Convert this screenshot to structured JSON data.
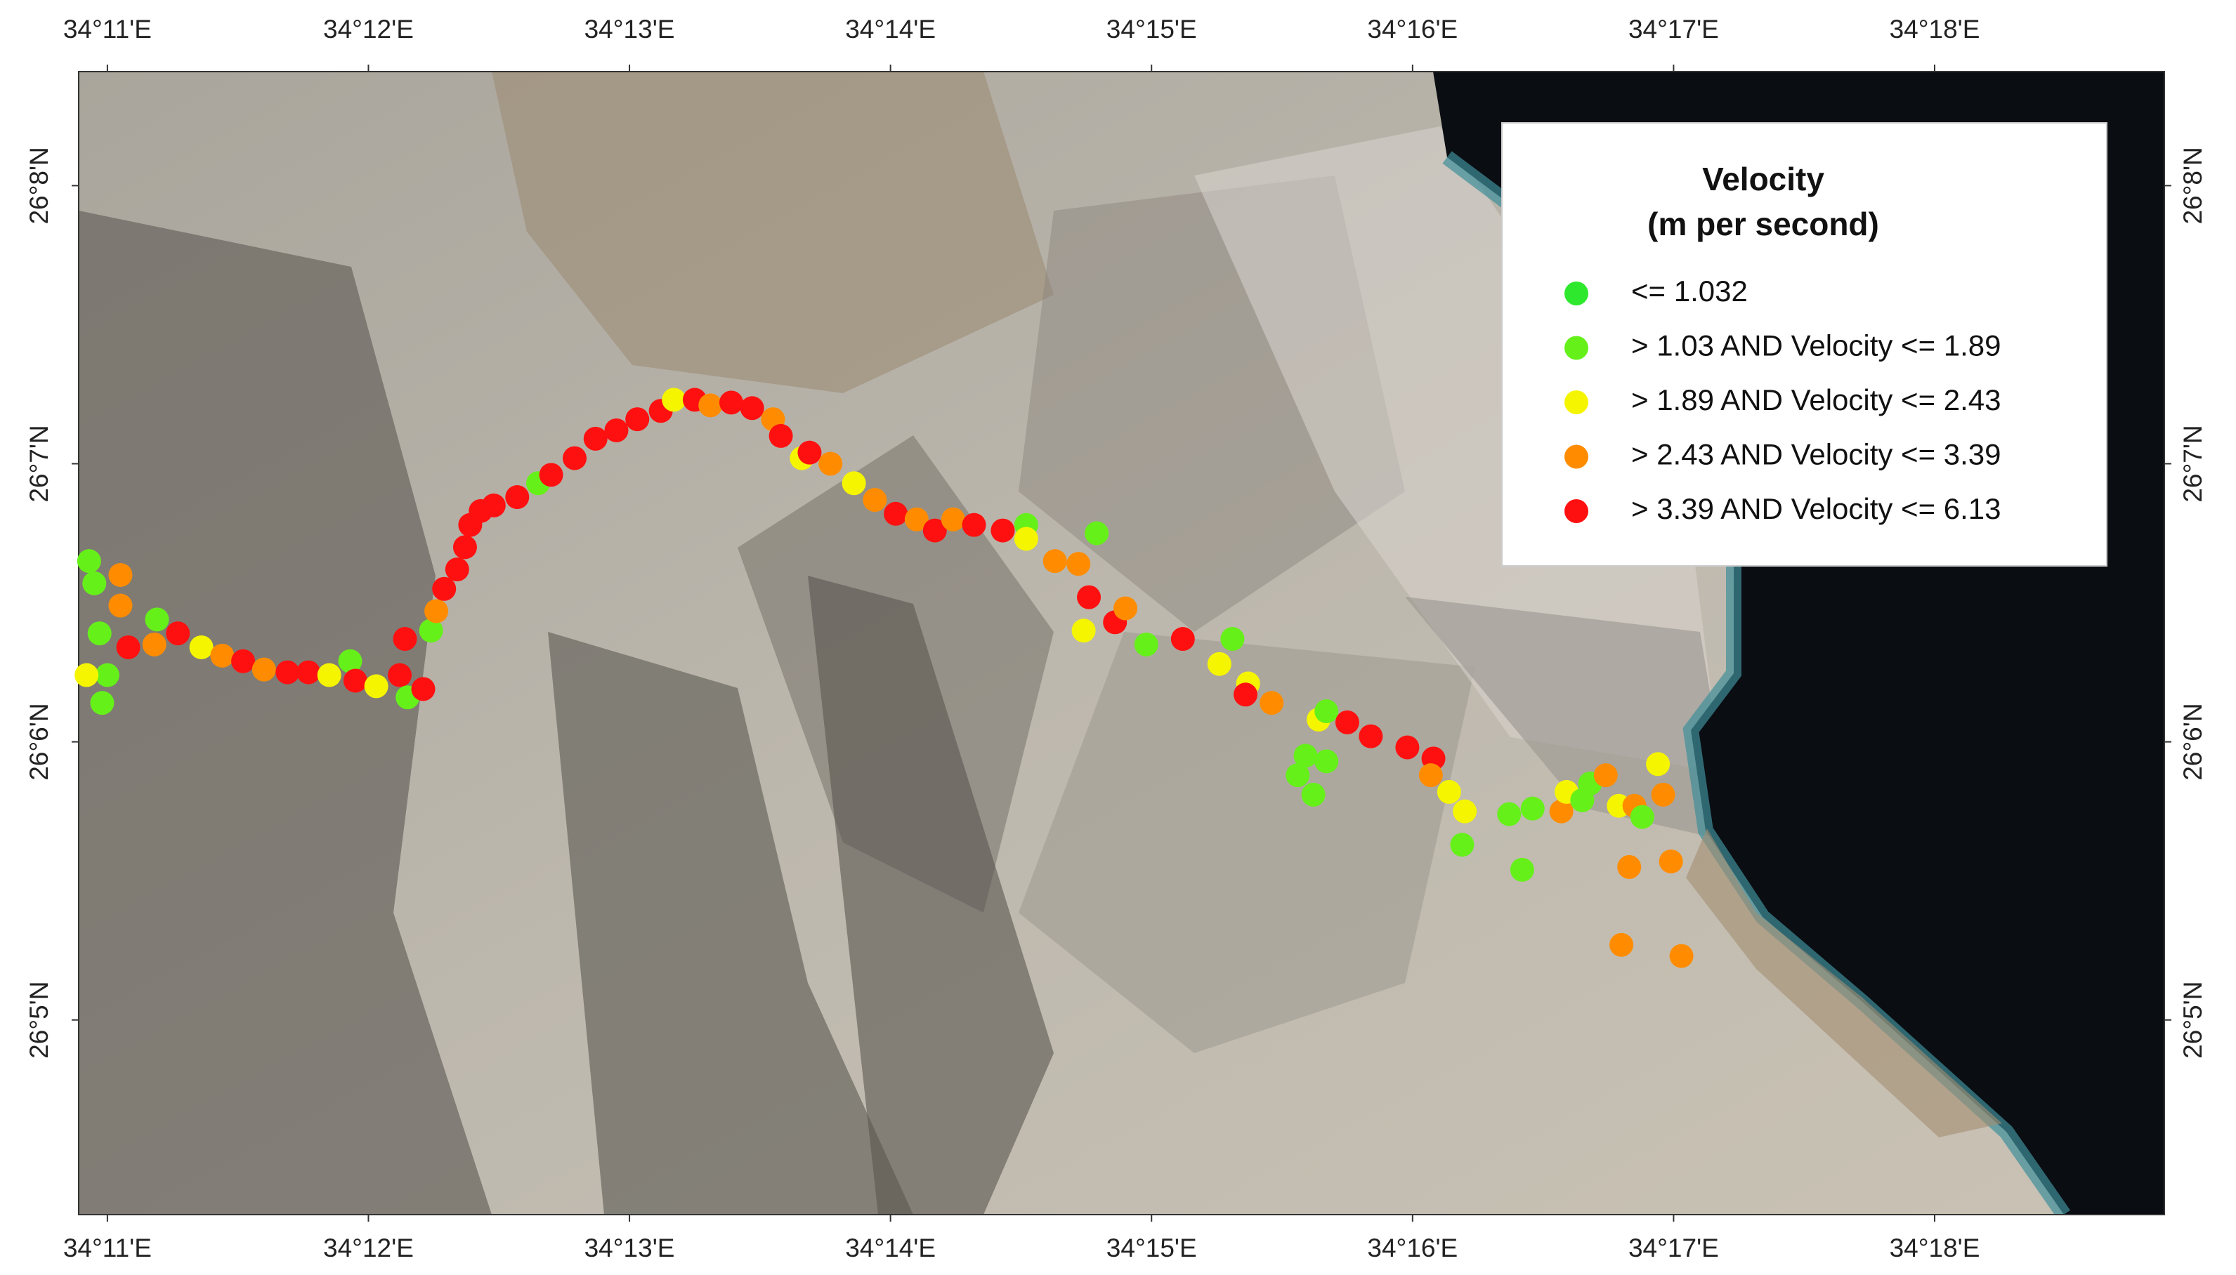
{
  "map": {
    "xlim": [
      10.89,
      18.88
    ],
    "ylim": [
      4.3,
      8.41
    ],
    "xticks": [
      {
        "value": 11,
        "label": "34°11'E"
      },
      {
        "value": 12,
        "label": "34°12'E"
      },
      {
        "value": 13,
        "label": "34°13'E"
      },
      {
        "value": 14,
        "label": "34°14'E"
      },
      {
        "value": 15,
        "label": "34°15'E"
      },
      {
        "value": 16,
        "label": "34°16'E"
      },
      {
        "value": 17,
        "label": "34°17'E"
      },
      {
        "value": 18,
        "label": "34°18'E"
      }
    ],
    "yticks": [
      {
        "value": 8,
        "label": "26°8'N"
      },
      {
        "value": 7,
        "label": "26°7'N"
      },
      {
        "value": 6,
        "label": "26°6'N"
      },
      {
        "value": 5,
        "label": "26°5'N"
      }
    ],
    "legend": {
      "title": [
        "Velocity",
        "(m per second)"
      ],
      "classes": [
        {
          "label": "<= 1.032",
          "color": "#2ee82e"
        },
        {
          "label": "> 1.03 AND Velocity <= 1.89",
          "color": "#66f01a"
        },
        {
          "label": "> 1.89 AND Velocity <= 2.43",
          "color": "#f5f500"
        },
        {
          "label": "> 2.43 AND Velocity <= 3.39",
          "color": "#ff8c00"
        },
        {
          "label": "> 3.39 AND Velocity <= 6.13",
          "color": "#ff1010"
        }
      ]
    },
    "points": {
      "lon": [
        10.93,
        10.95,
        11.05,
        11.05,
        10.97,
        11.08,
        11.0,
        10.98,
        10.92,
        11.19,
        11.18,
        11.27,
        11.36,
        11.44,
        11.52,
        11.6,
        11.69,
        11.77,
        11.85,
        11.93,
        11.95,
        12.03,
        12.12,
        12.14,
        12.15,
        12.21,
        12.24,
        12.26,
        12.29,
        12.34,
        12.37,
        12.39,
        12.43,
        12.48,
        12.57,
        12.65,
        12.7,
        12.79,
        12.87,
        12.95,
        13.03,
        13.12,
        13.17,
        13.25,
        13.31,
        13.39,
        13.47,
        13.55,
        13.58,
        13.66,
        13.69,
        13.77,
        13.86,
        13.94,
        14.02,
        14.1,
        14.17,
        14.24,
        14.32,
        14.43,
        14.52,
        14.52,
        14.63,
        14.72,
        14.79,
        14.76,
        14.74,
        14.86,
        14.9,
        14.98,
        15.12,
        15.31,
        15.26,
        15.37,
        15.36,
        15.46,
        15.64,
        15.67,
        15.75,
        15.84,
        15.56,
        15.59,
        15.62,
        15.67,
        15.98,
        16.08,
        16.07,
        16.14,
        16.2,
        16.19,
        16.37,
        16.46,
        16.42,
        16.57,
        16.59,
        16.65,
        16.68,
        16.74,
        16.79,
        16.85,
        16.88,
        16.94,
        16.96,
        16.83,
        16.99,
        16.8,
        17.03
      ],
      "lat": [
        6.65,
        6.57,
        6.6,
        6.49,
        6.39,
        6.34,
        6.24,
        6.14,
        6.24,
        6.44,
        6.35,
        6.39,
        6.34,
        6.31,
        6.29,
        6.26,
        6.25,
        6.25,
        6.24,
        6.29,
        6.22,
        6.2,
        6.24,
        6.37,
        6.16,
        6.19,
        6.4,
        6.47,
        6.55,
        6.62,
        6.7,
        6.78,
        6.83,
        6.85,
        6.88,
        6.93,
        6.96,
        7.02,
        7.09,
        7.12,
        7.16,
        7.19,
        7.23,
        7.23,
        7.21,
        7.22,
        7.2,
        7.16,
        7.1,
        7.02,
        7.04,
        7.0,
        6.93,
        6.87,
        6.82,
        6.8,
        6.76,
        6.8,
        6.78,
        6.76,
        6.78,
        6.73,
        6.65,
        6.64,
        6.75,
        6.52,
        6.4,
        6.43,
        6.48,
        6.35,
        6.37,
        6.37,
        6.28,
        6.21,
        6.17,
        6.14,
        6.08,
        6.11,
        6.07,
        6.02,
        5.88,
        5.95,
        5.81,
        5.93,
        5.98,
        5.94,
        5.88,
        5.82,
        5.75,
        5.63,
        5.74,
        5.76,
        5.54,
        5.75,
        5.82,
        5.79,
        5.85,
        5.88,
        5.77,
        5.77,
        5.73,
        5.92,
        5.81,
        5.55,
        5.57,
        5.27,
        5.23
      ],
      "class": [
        1,
        1,
        3,
        3,
        1,
        4,
        1,
        1,
        2,
        1,
        3,
        4,
        2,
        3,
        4,
        3,
        4,
        4,
        2,
        1,
        4,
        2,
        4,
        4,
        1,
        4,
        1,
        3,
        4,
        4,
        4,
        4,
        4,
        4,
        4,
        1,
        4,
        4,
        4,
        4,
        4,
        4,
        2,
        4,
        3,
        4,
        4,
        3,
        4,
        2,
        4,
        3,
        2,
        3,
        4,
        3,
        4,
        3,
        4,
        4,
        1,
        2,
        3,
        3,
        1,
        4,
        2,
        4,
        3,
        1,
        4,
        1,
        2,
        2,
        4,
        3,
        2,
        1,
        4,
        4,
        1,
        1,
        1,
        1,
        4,
        4,
        3,
        2,
        2,
        1,
        1,
        1,
        1,
        3,
        2,
        1,
        1,
        3,
        2,
        3,
        1,
        2,
        3,
        3,
        3,
        3,
        3
      ]
    }
  }
}
